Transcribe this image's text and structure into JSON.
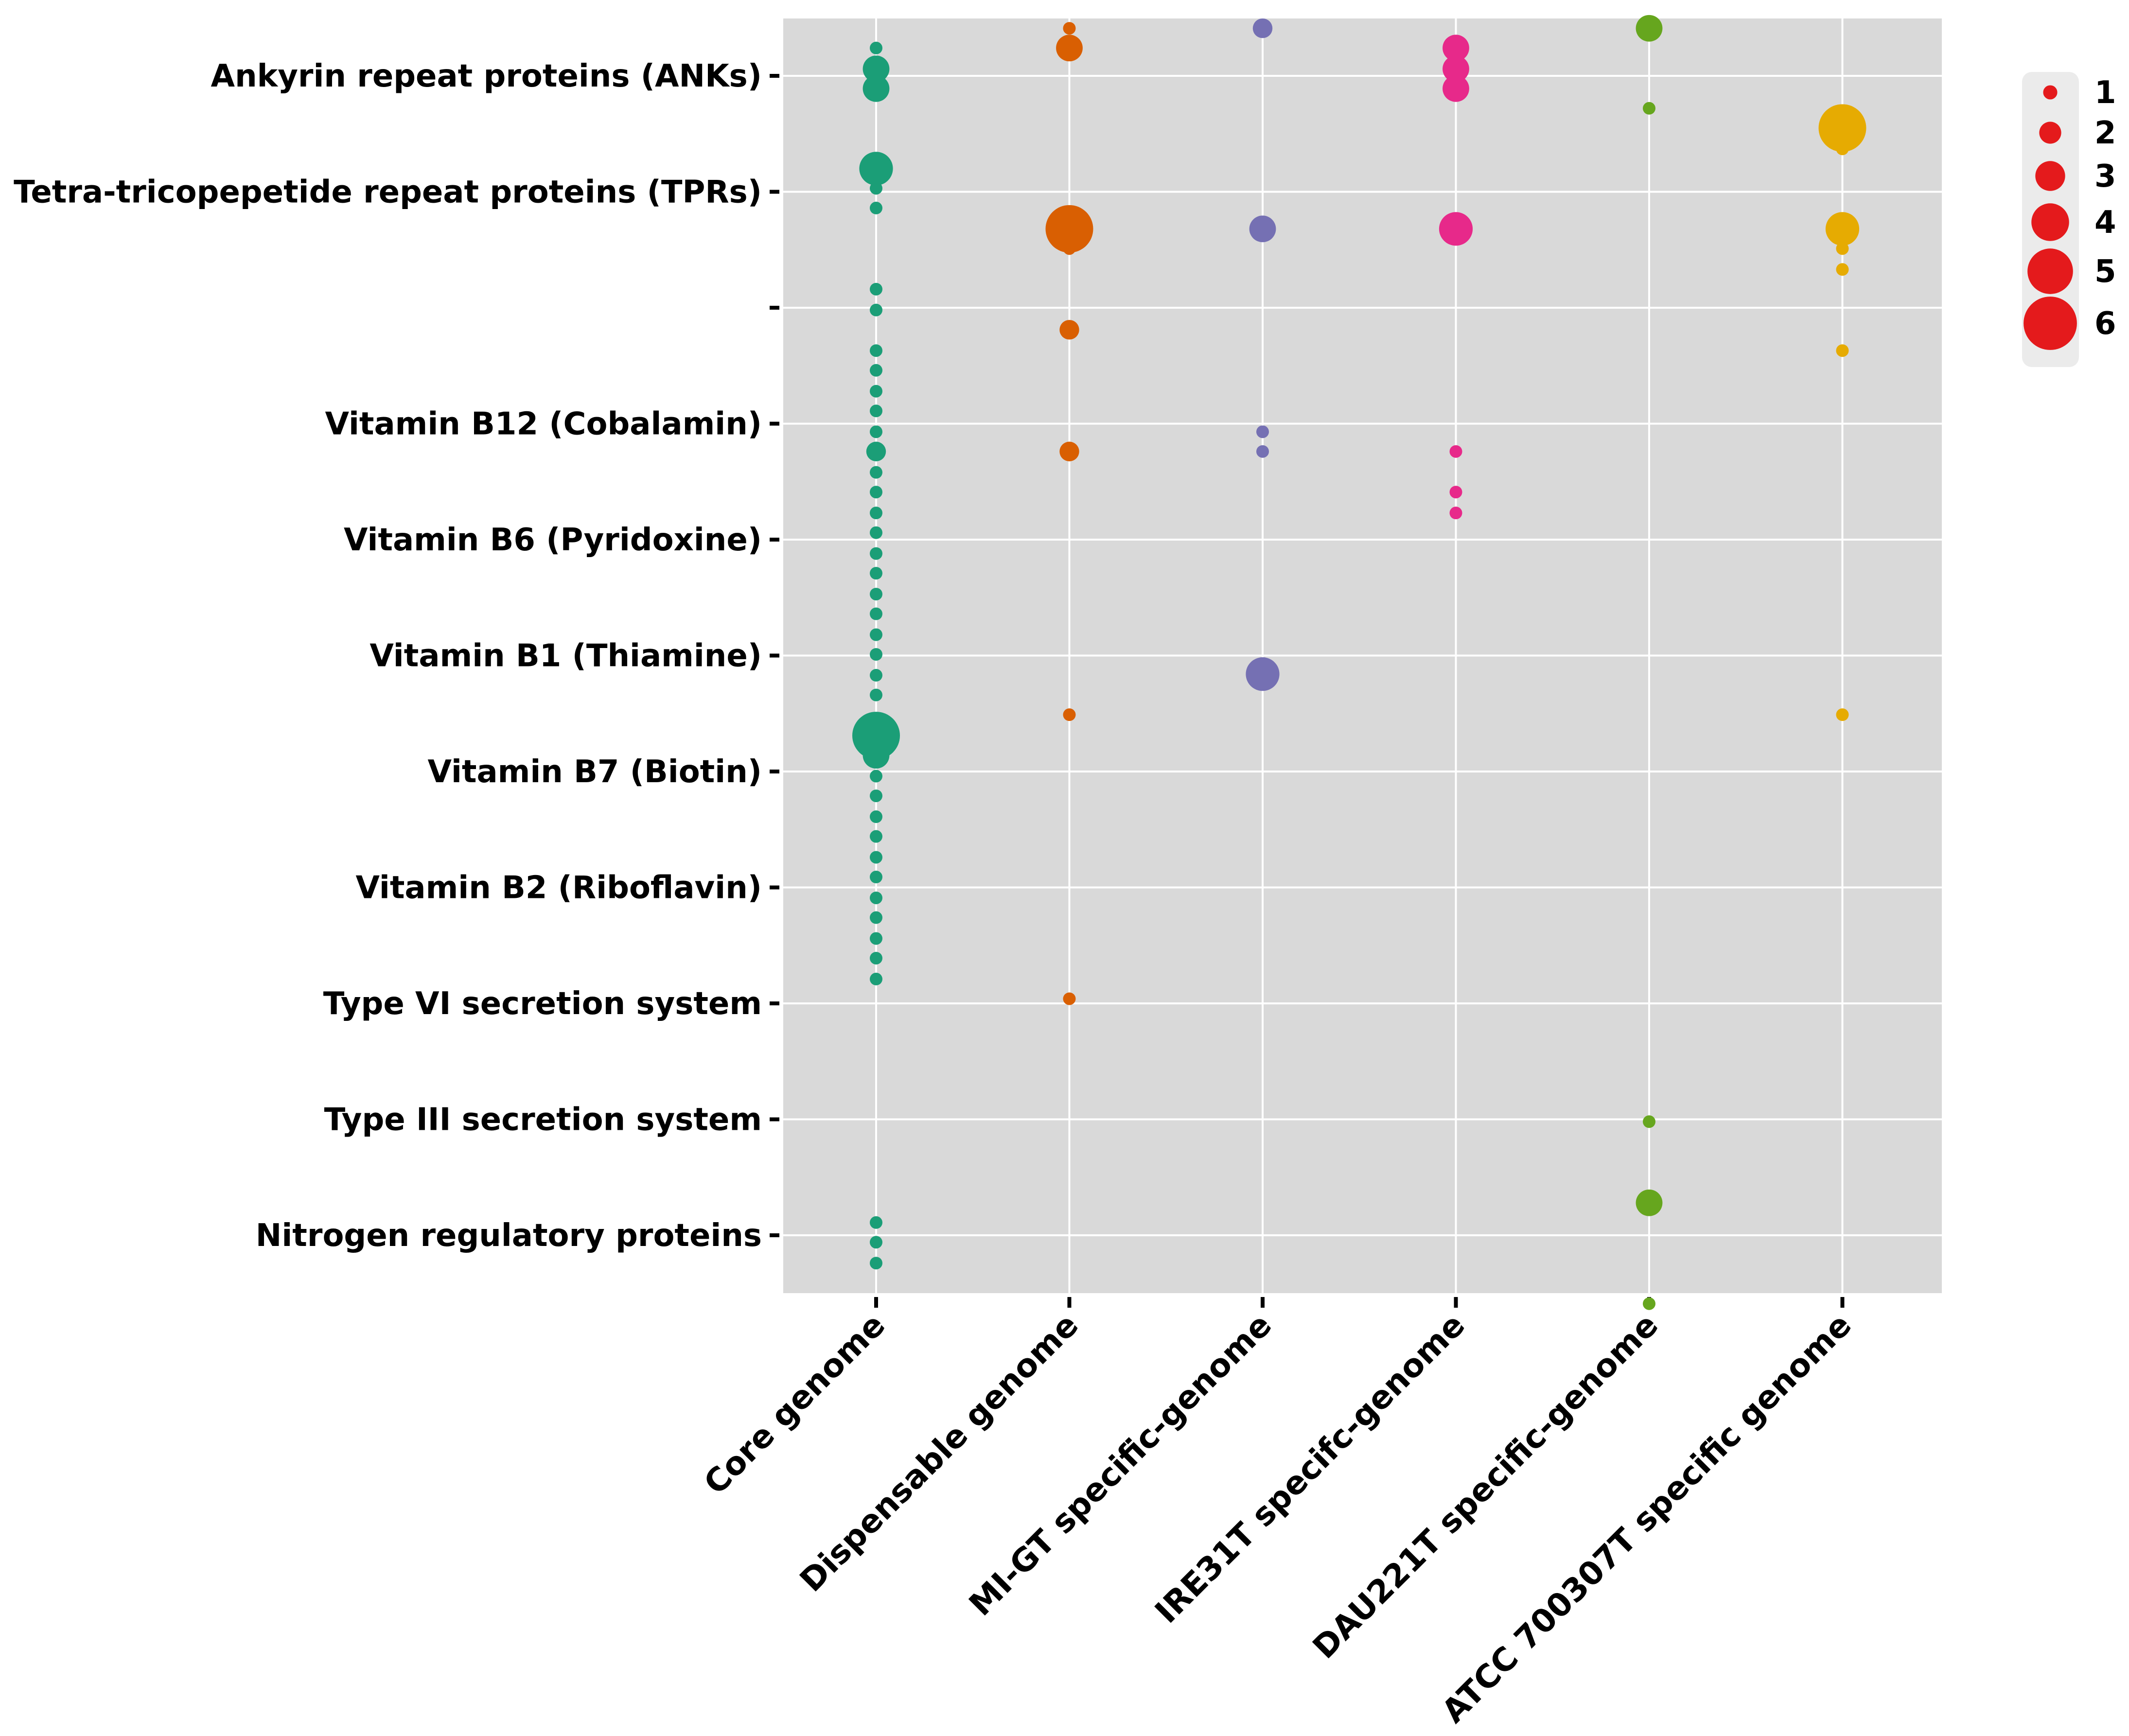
{
  "chart_data": {
    "type": "scatter",
    "subtype": "dot-matrix",
    "title": "",
    "xlabel": "",
    "ylabel": "",
    "x_categories": [
      "Core genome",
      "Dispensable genome",
      "MI-GT specific-genome",
      "IRE31T specifc-genome",
      "DAU221T specific-genome",
      "ATCC 700307T specific genome"
    ],
    "y_categories": [
      "Ankyrin repeat proteins (ANKs)",
      "Tetra-tricopepetide repeat proteins (TPRs)",
      "",
      "Vitamin B12 (Cobalamin)",
      "Vitamin B6 (Pyridoxine)",
      "Vitamin B1 (Thiamine)",
      "Vitamin B7 (Biotin)",
      "Vitamin B2 (Riboflavin)",
      "Type VI secretion system",
      "Type III secretion system",
      "Nitrogen regulatory proteins"
    ],
    "y_position_note": "y is measured in category units: 0 = first category row, increasing downward; fractional values place points between rows",
    "colors": {
      "Core genome": "#1b9e77",
      "Dispensable genome": "#d95f02",
      "MI-GT specific-genome": "#7570b3",
      "IRE31T specifc-genome": "#e7298a",
      "DAU221T specific-genome": "#66a61e",
      "ATCC 700307T specific genome": "#e6ab02"
    },
    "legend": {
      "position": "right",
      "sizes": [
        1,
        2,
        3,
        4,
        5,
        6
      ],
      "color": "#e41a1c"
    },
    "series": [
      {
        "name": "Core genome",
        "points": [
          {
            "y": -0.24,
            "size": 1
          },
          {
            "y": -0.06,
            "size": 3
          },
          {
            "y": 0.11,
            "size": 3
          },
          {
            "y": 0.8,
            "size": 4
          },
          {
            "y": 0.97,
            "size": 1
          },
          {
            "y": 1.14,
            "size": 1
          },
          {
            "y": 1.84,
            "size": 1
          },
          {
            "y": 2.02,
            "size": 1
          },
          {
            "y": 2.37,
            "size": 1
          },
          {
            "y": 2.54,
            "size": 1
          },
          {
            "y": 2.72,
            "size": 1
          },
          {
            "y": 2.89,
            "size": 1
          },
          {
            "y": 3.07,
            "size": 1
          },
          {
            "y": 3.24,
            "size": 2
          },
          {
            "y": 3.42,
            "size": 1
          },
          {
            "y": 3.59,
            "size": 1
          },
          {
            "y": 3.77,
            "size": 1
          },
          {
            "y": 3.94,
            "size": 1
          },
          {
            "y": 4.12,
            "size": 1
          },
          {
            "y": 4.29,
            "size": 1
          },
          {
            "y": 4.47,
            "size": 1
          },
          {
            "y": 4.64,
            "size": 1
          },
          {
            "y": 4.82,
            "size": 1
          },
          {
            "y": 4.99,
            "size": 1
          },
          {
            "y": 5.17,
            "size": 1
          },
          {
            "y": 5.34,
            "size": 1
          },
          {
            "y": 5.69,
            "size": 6
          },
          {
            "y": 5.86,
            "size": 3
          },
          {
            "y": 6.04,
            "size": 1
          },
          {
            "y": 6.21,
            "size": 1
          },
          {
            "y": 6.39,
            "size": 1
          },
          {
            "y": 6.56,
            "size": 1
          },
          {
            "y": 6.74,
            "size": 1
          },
          {
            "y": 6.91,
            "size": 1
          },
          {
            "y": 7.09,
            "size": 1
          },
          {
            "y": 7.26,
            "size": 1
          },
          {
            "y": 7.44,
            "size": 1
          },
          {
            "y": 7.61,
            "size": 1
          },
          {
            "y": 7.79,
            "size": 1
          },
          {
            "y": 9.89,
            "size": 1
          },
          {
            "y": 10.06,
            "size": 1
          },
          {
            "y": 10.24,
            "size": 1
          }
        ]
      },
      {
        "name": "Dispensable genome",
        "points": [
          {
            "y": -0.41,
            "size": 1
          },
          {
            "y": -0.24,
            "size": 3
          },
          {
            "y": 1.32,
            "size": 6
          },
          {
            "y": 1.49,
            "size": 1
          },
          {
            "y": 2.19,
            "size": 2
          },
          {
            "y": 3.24,
            "size": 2
          },
          {
            "y": 5.51,
            "size": 1
          },
          {
            "y": 7.96,
            "size": 1
          }
        ]
      },
      {
        "name": "MI-GT specific-genome",
        "points": [
          {
            "y": -0.41,
            "size": 2
          },
          {
            "y": 1.32,
            "size": 3
          },
          {
            "y": 3.07,
            "size": 1
          },
          {
            "y": 3.24,
            "size": 1
          },
          {
            "y": 5.16,
            "size": 4
          }
        ]
      },
      {
        "name": "IRE31T specifc-genome",
        "points": [
          {
            "y": -0.24,
            "size": 3
          },
          {
            "y": -0.06,
            "size": 3
          },
          {
            "y": 0.11,
            "size": 3
          },
          {
            "y": 1.32,
            "size": 4
          },
          {
            "y": 3.24,
            "size": 1
          },
          {
            "y": 3.59,
            "size": 1
          },
          {
            "y": 3.77,
            "size": 1
          }
        ]
      },
      {
        "name": "DAU221T specific-genome",
        "points": [
          {
            "y": -0.41,
            "size": 3
          },
          {
            "y": 0.28,
            "size": 1
          },
          {
            "y": 9.02,
            "size": 1
          },
          {
            "y": 9.72,
            "size": 3
          },
          {
            "y": 10.59,
            "size": 1
          }
        ]
      },
      {
        "name": "ATCC 700307T specific genome",
        "points": [
          {
            "y": 0.45,
            "size": 6
          },
          {
            "y": 0.63,
            "size": 1
          },
          {
            "y": 1.32,
            "size": 4
          },
          {
            "y": 1.49,
            "size": 1
          },
          {
            "y": 1.67,
            "size": 1
          },
          {
            "y": 2.37,
            "size": 1
          },
          {
            "y": 5.51,
            "size": 1
          }
        ]
      }
    ]
  }
}
